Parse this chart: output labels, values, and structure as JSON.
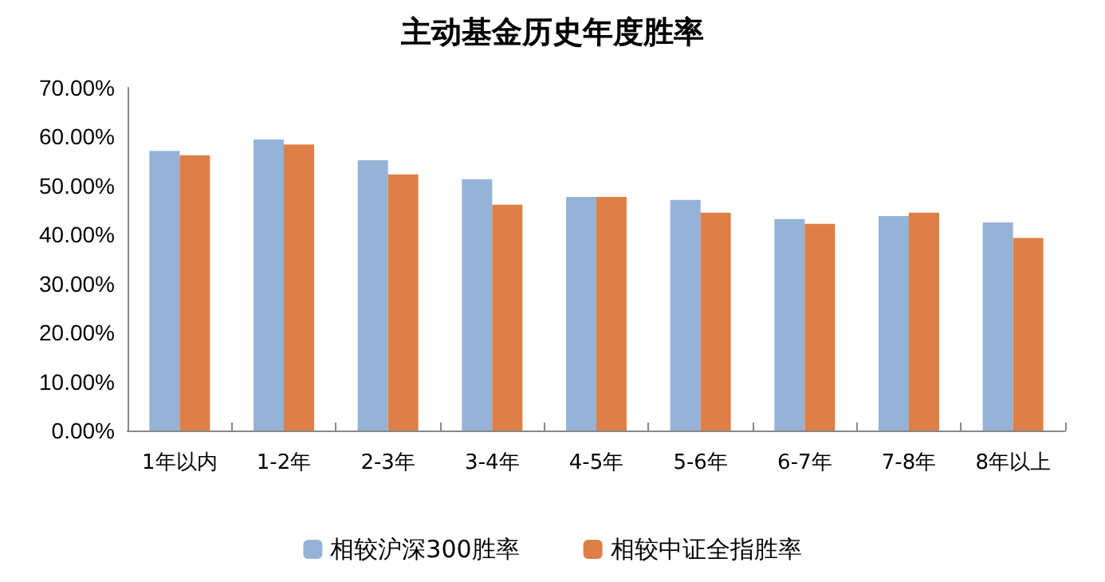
{
  "chart_data": {
    "type": "bar",
    "title": "主动基金历史年度胜率",
    "categories": [
      "1年以内",
      "1-2年",
      "2-3年",
      "3-4年",
      "4-5年",
      "5-6年",
      "6-7年",
      "7-8年",
      "8年以上"
    ],
    "series": [
      {
        "name": "相较沪深300胜率",
        "color": "#95b3d7",
        "values": [
          57.1,
          59.4,
          55.2,
          51.3,
          47.7,
          47.1,
          43.2,
          43.8,
          42.5
        ]
      },
      {
        "name": "相较中证全指胜率",
        "color": "#dd8047",
        "values": [
          56.2,
          58.4,
          52.3,
          46.1,
          47.7,
          44.5,
          42.2,
          44.5,
          39.3
        ]
      }
    ],
    "ylim": [
      0,
      70
    ],
    "yticks": [
      {
        "value": 0,
        "label": "0.00%"
      },
      {
        "value": 10,
        "label": "10.00%"
      },
      {
        "value": 20,
        "label": "20.00%"
      },
      {
        "value": 30,
        "label": "30.00%"
      },
      {
        "value": 40,
        "label": "40.00%"
      },
      {
        "value": 50,
        "label": "50.00%"
      },
      {
        "value": 60,
        "label": "60.00%"
      },
      {
        "value": 70,
        "label": "70.00%"
      }
    ],
    "grid": false,
    "legend": "bottom"
  }
}
